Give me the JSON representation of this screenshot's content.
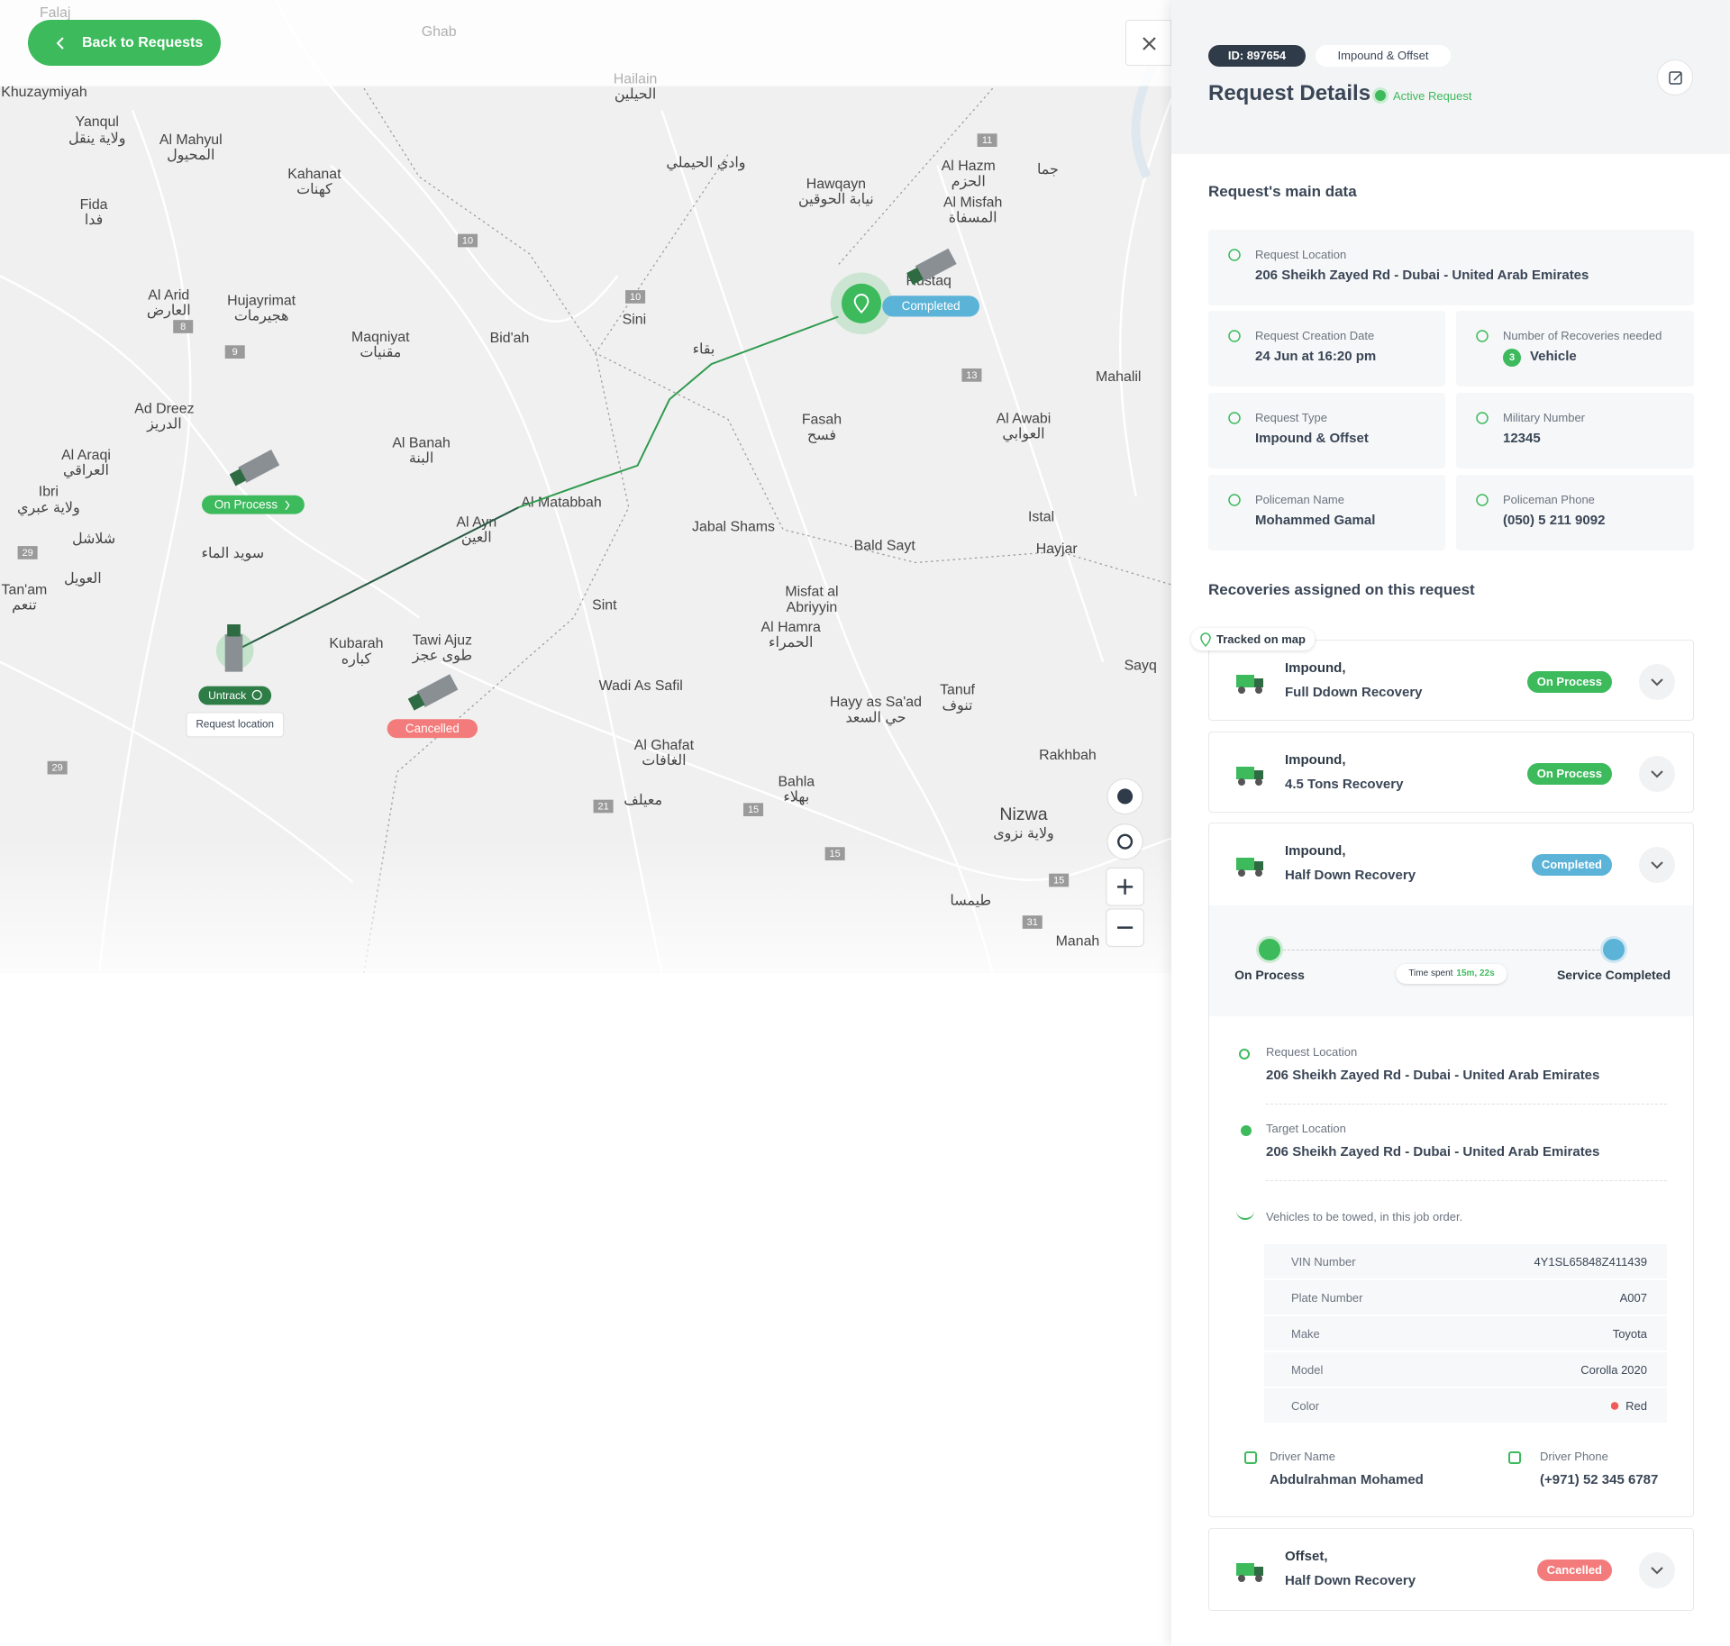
{
  "header": {
    "back": "Back to Requests",
    "id": "ID: 897654",
    "type_tag": "Impound & Offset",
    "title": "Request Details",
    "status": "Active Request"
  },
  "main_data": {
    "heading": "Request's main data",
    "fields": [
      {
        "label": "Request Location",
        "value": "206 Sheikh Zayed Rd - Dubai - United Arab Emirates"
      },
      {
        "label": "Request Creation Date",
        "value": "24 Jun at 16:20 pm"
      },
      {
        "label": "Number of Recoveries needed",
        "count": 3,
        "value": "Vehicle"
      },
      {
        "label": "Request Type",
        "value": "Impound & Offset"
      },
      {
        "label": "Military Number",
        "value": "12345"
      },
      {
        "label": "Policeman Name",
        "value": "Mohammed Gamal"
      },
      {
        "label": "Policeman Phone",
        "value": "(050) 5 211 9092"
      }
    ]
  },
  "recoveries": {
    "heading": "Recoveries assigned on this request",
    "tracked": "Tracked on map",
    "items": [
      {
        "category": "Impound,",
        "name": "Full Ddown Recovery",
        "status": "On Process"
      },
      {
        "category": "Impound,",
        "name": "4.5 Tons Recovery",
        "status": "On Process"
      },
      {
        "category": "Impound,",
        "name": "Half Down Recovery",
        "status": "Completed"
      },
      {
        "category": "Offset,",
        "name": "Half Down Recovery",
        "status": "Cancelled"
      }
    ],
    "expanded": {
      "timeline": {
        "start": "On Process",
        "end": "Service Completed",
        "time_label": "Time spent",
        "time_value": "15m, 22s"
      },
      "request_location": {
        "label": "Request Location",
        "value": "206 Sheikh Zayed Rd - Dubai - United Arab Emirates"
      },
      "target_location": {
        "label": "Target Location",
        "value": "206 Sheikh Zayed Rd - Dubai - United Arab Emirates"
      },
      "vehicles_note": "Vehicles to be towed, in this job order.",
      "vehicle_table": [
        [
          "VIN Number",
          "4Y1SL65848Z411439"
        ],
        [
          "Plate Number",
          "A007"
        ],
        [
          "Make",
          "Toyota"
        ],
        [
          "Model",
          "Corolla 2020"
        ],
        [
          "Color",
          "Red"
        ]
      ],
      "driver_name": {
        "label": "Driver Name",
        "value": "Abdulrahman Mohamed"
      },
      "driver_phone": {
        "label": "Driver Phone",
        "value": "(+971) 52 345 6787"
      }
    }
  },
  "map": {
    "labels": [
      "Falaj",
      "Ghab",
      "Hailain",
      "الحيلين",
      "Khuzaymiyah",
      "Yanqul",
      "ولاية ينقل",
      "Al Mahyul",
      "المحيول",
      "Kahanat",
      "كهنات",
      "وادي الحيملي",
      "Hawqayn",
      "نيابة الحوقين",
      "Al Hazm",
      "الحزم",
      "Al Misfah",
      "المسفاة",
      "جما",
      "Fida",
      "فدا",
      "Al Arid",
      "العارض",
      "Hujayrimat",
      "هجيرمات",
      "Maqniyat",
      "مقنيات",
      "Bid'ah",
      "Sini",
      "بقاء",
      "Mahalil",
      "Ad Dreez",
      "الدريز",
      "Al Araqi",
      "العراقي",
      "Al Banah",
      "البنة",
      "Fasah",
      "فسح",
      "Al Awabi",
      "العوابي",
      "Ibri",
      "ولاية عبري",
      "شلاشل",
      "Al Matabbah",
      "Al Ayn",
      "العين",
      "Jabal Shams",
      "Istal",
      "Hayjar",
      "Bald Sayt",
      "سويد الماء",
      "العويل",
      "Tan'am",
      "تنعم",
      "Sint",
      "Misfat al",
      "Abriyyin",
      "Al Hamra",
      "الحمراء",
      "Kubarah",
      "كباره",
      "Tawi Ajuz",
      "طوى عجز",
      "Sayq",
      "Wadi As Safil",
      "Hayy as Sa'ad",
      "حي السعد",
      "Tanuf",
      "تنوف",
      "Al Ghafat",
      "الغافات",
      "Rakhbah",
      "Bahla",
      "بهلاء",
      "معيلف",
      "Nizwa",
      "ولاية نزوى",
      "طيمسا",
      "Manah",
      "Rustaq"
    ],
    "road_numbers": [
      "11",
      "10",
      "10",
      "13",
      "8",
      "9",
      "29",
      "29",
      "21",
      "15",
      "15",
      "15",
      "31"
    ],
    "badges": {
      "completed": "Completed",
      "on_process": "On Process",
      "untrack": "Untrack",
      "request_location": "Request location",
      "cancelled": "Cancelled"
    }
  }
}
